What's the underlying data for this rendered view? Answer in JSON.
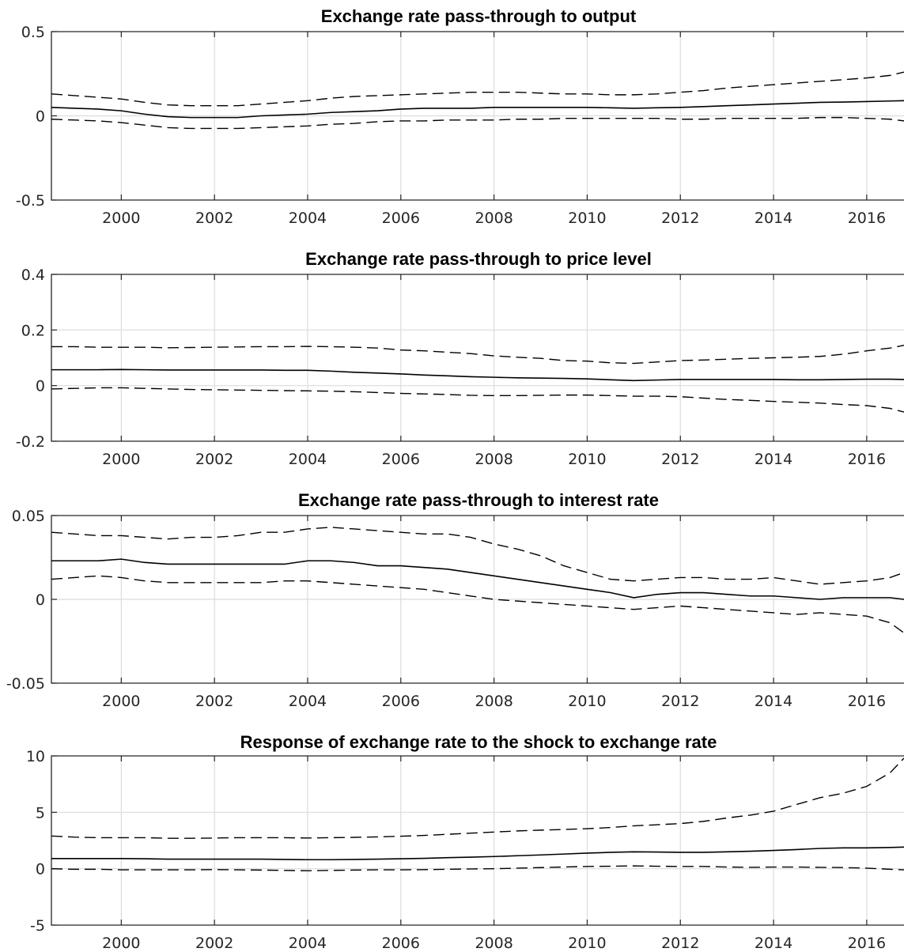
{
  "chart_data": [
    {
      "type": "line",
      "title": "Exchange rate pass-through to output",
      "xlabel": "",
      "ylabel": "",
      "xlim": [
        1998.5,
        2016.8
      ],
      "ylim": [
        -0.5,
        0.5
      ],
      "xticks": [
        2000,
        2002,
        2004,
        2006,
        2008,
        2010,
        2012,
        2014,
        2016
      ],
      "yticks": [
        -0.5,
        0,
        0.5
      ],
      "ytick_labels": [
        "-0.5",
        "0",
        "0.5"
      ],
      "grid": true,
      "x": [
        1998.5,
        1999,
        1999.5,
        2000,
        2000.5,
        2001,
        2001.5,
        2002,
        2002.5,
        2003,
        2003.5,
        2004,
        2004.5,
        2005,
        2005.5,
        2006,
        2006.5,
        2007,
        2007.5,
        2008,
        2008.5,
        2009,
        2009.5,
        2010,
        2010.5,
        2011,
        2011.5,
        2012,
        2012.5,
        2013,
        2013.5,
        2014,
        2014.5,
        2015,
        2015.5,
        2016,
        2016.5,
        2016.8
      ],
      "series": [
        {
          "role": "median",
          "values": [
            0.05,
            0.045,
            0.04,
            0.03,
            0.01,
            -0.005,
            -0.01,
            -0.01,
            -0.01,
            0.0,
            0.005,
            0.01,
            0.02,
            0.025,
            0.03,
            0.04,
            0.045,
            0.045,
            0.045,
            0.05,
            0.05,
            0.05,
            0.05,
            0.05,
            0.048,
            0.045,
            0.048,
            0.05,
            0.055,
            0.06,
            0.065,
            0.07,
            0.075,
            0.08,
            0.082,
            0.085,
            0.088,
            0.09
          ]
        },
        {
          "role": "upper",
          "values": [
            0.13,
            0.12,
            0.11,
            0.1,
            0.08,
            0.065,
            0.06,
            0.06,
            0.06,
            0.07,
            0.08,
            0.09,
            0.105,
            0.115,
            0.12,
            0.125,
            0.13,
            0.135,
            0.14,
            0.14,
            0.14,
            0.135,
            0.13,
            0.13,
            0.125,
            0.125,
            0.13,
            0.14,
            0.15,
            0.165,
            0.175,
            0.185,
            0.195,
            0.205,
            0.215,
            0.225,
            0.24,
            0.26
          ]
        },
        {
          "role": "lower",
          "values": [
            -0.02,
            -0.025,
            -0.03,
            -0.04,
            -0.055,
            -0.07,
            -0.075,
            -0.075,
            -0.075,
            -0.07,
            -0.065,
            -0.06,
            -0.05,
            -0.045,
            -0.035,
            -0.03,
            -0.03,
            -0.025,
            -0.025,
            -0.025,
            -0.02,
            -0.02,
            -0.015,
            -0.015,
            -0.015,
            -0.015,
            -0.015,
            -0.02,
            -0.02,
            -0.015,
            -0.015,
            -0.015,
            -0.015,
            -0.01,
            -0.01,
            -0.015,
            -0.02,
            -0.03
          ]
        }
      ]
    },
    {
      "type": "line",
      "title": "Exchange rate pass-through to price level",
      "xlabel": "",
      "ylabel": "",
      "xlim": [
        1998.5,
        2016.8
      ],
      "ylim": [
        -0.2,
        0.4
      ],
      "xticks": [
        2000,
        2002,
        2004,
        2006,
        2008,
        2010,
        2012,
        2014,
        2016
      ],
      "yticks": [
        -0.2,
        0,
        0.2,
        0.4
      ],
      "ytick_labels": [
        "-0.2",
        "0",
        "0.2",
        "0.4"
      ],
      "grid": true,
      "x": [
        1998.5,
        1999,
        1999.5,
        2000,
        2000.5,
        2001,
        2001.5,
        2002,
        2002.5,
        2003,
        2003.5,
        2004,
        2004.5,
        2005,
        2005.5,
        2006,
        2006.5,
        2007,
        2007.5,
        2008,
        2008.5,
        2009,
        2009.5,
        2010,
        2010.5,
        2011,
        2011.5,
        2012,
        2012.5,
        2013,
        2013.5,
        2014,
        2014.5,
        2015,
        2015.5,
        2016,
        2016.5,
        2016.8
      ],
      "series": [
        {
          "role": "median",
          "values": [
            0.057,
            0.057,
            0.057,
            0.058,
            0.057,
            0.056,
            0.056,
            0.056,
            0.056,
            0.056,
            0.055,
            0.055,
            0.052,
            0.048,
            0.045,
            0.042,
            0.038,
            0.035,
            0.032,
            0.03,
            0.028,
            0.027,
            0.026,
            0.024,
            0.021,
            0.018,
            0.02,
            0.022,
            0.022,
            0.022,
            0.022,
            0.022,
            0.021,
            0.021,
            0.022,
            0.023,
            0.023,
            0.022
          ]
        },
        {
          "role": "upper",
          "values": [
            0.14,
            0.14,
            0.138,
            0.138,
            0.138,
            0.136,
            0.137,
            0.138,
            0.139,
            0.14,
            0.14,
            0.141,
            0.14,
            0.138,
            0.135,
            0.128,
            0.125,
            0.12,
            0.115,
            0.107,
            0.102,
            0.098,
            0.09,
            0.088,
            0.082,
            0.08,
            0.085,
            0.09,
            0.092,
            0.095,
            0.098,
            0.1,
            0.102,
            0.105,
            0.113,
            0.125,
            0.135,
            0.145
          ]
        },
        {
          "role": "lower",
          "values": [
            -0.012,
            -0.01,
            -0.008,
            -0.008,
            -0.01,
            -0.012,
            -0.014,
            -0.015,
            -0.016,
            -0.017,
            -0.018,
            -0.019,
            -0.02,
            -0.022,
            -0.025,
            -0.028,
            -0.03,
            -0.032,
            -0.035,
            -0.036,
            -0.036,
            -0.035,
            -0.034,
            -0.034,
            -0.036,
            -0.038,
            -0.038,
            -0.04,
            -0.045,
            -0.05,
            -0.053,
            -0.057,
            -0.06,
            -0.063,
            -0.068,
            -0.072,
            -0.082,
            -0.095
          ]
        }
      ]
    },
    {
      "type": "line",
      "title": "Exchange rate pass-through to interest rate",
      "xlabel": "",
      "ylabel": "",
      "xlim": [
        1998.5,
        2016.8
      ],
      "ylim": [
        -0.05,
        0.05
      ],
      "xticks": [
        2000,
        2002,
        2004,
        2006,
        2008,
        2010,
        2012,
        2014,
        2016
      ],
      "yticks": [
        -0.05,
        0,
        0.05
      ],
      "ytick_labels": [
        "-0.05",
        "0",
        "0.05"
      ],
      "grid": true,
      "x": [
        1998.5,
        1999,
        1999.5,
        2000,
        2000.5,
        2001,
        2001.5,
        2002,
        2002.5,
        2003,
        2003.5,
        2004,
        2004.5,
        2005,
        2005.5,
        2006,
        2006.5,
        2007,
        2007.5,
        2008,
        2008.5,
        2009,
        2009.5,
        2010,
        2010.5,
        2011,
        2011.5,
        2012,
        2012.5,
        2013,
        2013.5,
        2014,
        2014.5,
        2015,
        2015.5,
        2016,
        2016.5,
        2016.8
      ],
      "series": [
        {
          "role": "median",
          "values": [
            0.023,
            0.023,
            0.023,
            0.024,
            0.022,
            0.021,
            0.021,
            0.021,
            0.021,
            0.021,
            0.021,
            0.023,
            0.023,
            0.022,
            0.02,
            0.02,
            0.019,
            0.018,
            0.016,
            0.014,
            0.012,
            0.01,
            0.008,
            0.006,
            0.004,
            0.001,
            0.003,
            0.004,
            0.004,
            0.003,
            0.002,
            0.002,
            0.001,
            0.0,
            0.001,
            0.001,
            0.001,
            0.0
          ]
        },
        {
          "role": "upper",
          "values": [
            0.04,
            0.039,
            0.038,
            0.038,
            0.037,
            0.036,
            0.037,
            0.037,
            0.038,
            0.04,
            0.04,
            0.042,
            0.043,
            0.042,
            0.041,
            0.04,
            0.039,
            0.039,
            0.037,
            0.033,
            0.03,
            0.026,
            0.02,
            0.016,
            0.012,
            0.011,
            0.012,
            0.013,
            0.013,
            0.012,
            0.012,
            0.013,
            0.011,
            0.009,
            0.01,
            0.011,
            0.013,
            0.016
          ]
        },
        {
          "role": "lower",
          "values": [
            0.012,
            0.013,
            0.014,
            0.013,
            0.011,
            0.01,
            0.01,
            0.01,
            0.01,
            0.01,
            0.011,
            0.011,
            0.01,
            0.009,
            0.008,
            0.007,
            0.006,
            0.004,
            0.002,
            0.0,
            -0.001,
            -0.002,
            -0.003,
            -0.004,
            -0.005,
            -0.006,
            -0.005,
            -0.004,
            -0.005,
            -0.006,
            -0.007,
            -0.008,
            -0.009,
            -0.008,
            -0.009,
            -0.01,
            -0.014,
            -0.02
          ]
        }
      ]
    },
    {
      "type": "line",
      "title": "Response of exchange rate to the shock to exchange rate",
      "xlabel": "",
      "ylabel": "",
      "xlim": [
        1998.5,
        2016.8
      ],
      "ylim": [
        -5,
        10
      ],
      "xticks": [
        2000,
        2002,
        2004,
        2006,
        2008,
        2010,
        2012,
        2014,
        2016
      ],
      "yticks": [
        -5,
        0,
        5,
        10
      ],
      "ytick_labels": [
        "-5",
        "0",
        "5",
        "10"
      ],
      "grid": true,
      "x": [
        1998.5,
        1999,
        1999.5,
        2000,
        2000.5,
        2001,
        2001.5,
        2002,
        2002.5,
        2003,
        2003.5,
        2004,
        2004.5,
        2005,
        2005.5,
        2006,
        2006.5,
        2007,
        2007.5,
        2008,
        2008.5,
        2009,
        2009.5,
        2010,
        2010.5,
        2011,
        2011.5,
        2012,
        2012.5,
        2013,
        2013.5,
        2014,
        2014.5,
        2015,
        2015.5,
        2016,
        2016.5,
        2016.8
      ],
      "series": [
        {
          "role": "median",
          "values": [
            0.9,
            0.9,
            0.9,
            0.9,
            0.88,
            0.85,
            0.85,
            0.85,
            0.85,
            0.85,
            0.82,
            0.8,
            0.8,
            0.82,
            0.85,
            0.88,
            0.92,
            0.98,
            1.02,
            1.08,
            1.15,
            1.22,
            1.3,
            1.38,
            1.45,
            1.5,
            1.48,
            1.45,
            1.45,
            1.5,
            1.55,
            1.62,
            1.7,
            1.8,
            1.85,
            1.85,
            1.88,
            1.92
          ]
        },
        {
          "role": "upper",
          "values": [
            2.9,
            2.8,
            2.75,
            2.75,
            2.75,
            2.7,
            2.7,
            2.72,
            2.75,
            2.75,
            2.75,
            2.72,
            2.75,
            2.78,
            2.82,
            2.88,
            2.95,
            3.05,
            3.15,
            3.25,
            3.35,
            3.42,
            3.48,
            3.55,
            3.65,
            3.8,
            3.9,
            4.0,
            4.2,
            4.5,
            4.75,
            5.1,
            5.7,
            6.3,
            6.7,
            7.3,
            8.5,
            9.8
          ]
        },
        {
          "role": "lower",
          "values": [
            0.0,
            -0.05,
            -0.05,
            -0.1,
            -0.1,
            -0.1,
            -0.1,
            -0.08,
            -0.1,
            -0.12,
            -0.15,
            -0.18,
            -0.15,
            -0.12,
            -0.1,
            -0.1,
            -0.08,
            -0.05,
            -0.02,
            0.0,
            0.05,
            0.1,
            0.15,
            0.2,
            0.22,
            0.25,
            0.22,
            0.2,
            0.2,
            0.15,
            0.12,
            0.15,
            0.15,
            0.12,
            0.1,
            0.05,
            -0.05,
            -0.1
          ]
        }
      ]
    }
  ]
}
